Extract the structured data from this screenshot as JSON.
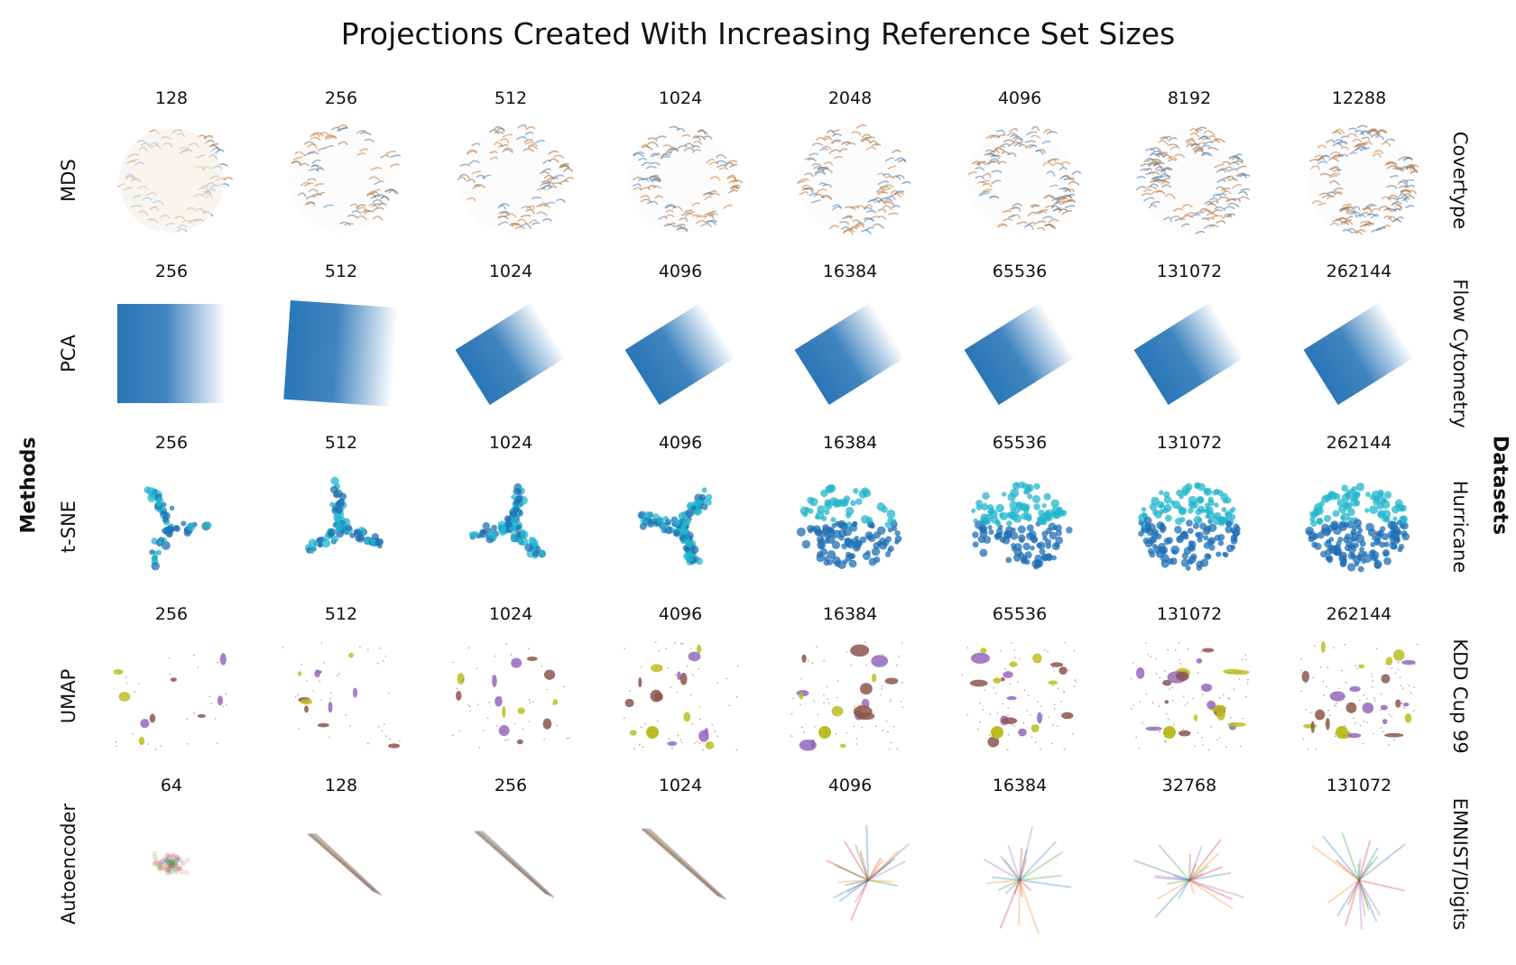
{
  "chart_data": {
    "type": "scatter",
    "title": "Projections Created With Increasing Reference Set Sizes",
    "row_axis_label": "Methods",
    "col_axis_label": "Datasets",
    "rows": [
      {
        "method": "MDS",
        "dataset": "Covertype",
        "sizes": [
          "128",
          "256",
          "512",
          "1024",
          "2048",
          "4096",
          "8192",
          "12288"
        ],
        "colors": [
          "#c66a1f",
          "#2b6fb3",
          "#8a5a2b"
        ]
      },
      {
        "method": "PCA",
        "dataset": "Flow Cytometry",
        "sizes": [
          "256",
          "512",
          "1024",
          "4096",
          "16384",
          "65536",
          "131072",
          "262144"
        ],
        "colors": [
          "#1f6fb4"
        ]
      },
      {
        "method": "t-SNE",
        "dataset": "Hurricane",
        "sizes": [
          "256",
          "512",
          "1024",
          "4096",
          "16384",
          "65536",
          "131072",
          "262144"
        ],
        "colors": [
          "#1f6fb4",
          "#22b6cc"
        ]
      },
      {
        "method": "UMAP",
        "dataset": "KDD Cup 99",
        "sizes": [
          "256",
          "512",
          "1024",
          "4096",
          "16384",
          "65536",
          "131072",
          "262144"
        ],
        "colors": [
          "#8c564b",
          "#9467bd",
          "#bcbd22"
        ]
      },
      {
        "method": "Autoencoder",
        "dataset": "EMNIST/Digits",
        "sizes": [
          "64",
          "128",
          "256",
          "1024",
          "4096",
          "16384",
          "32768",
          "131072"
        ],
        "colors": [
          "#d62728",
          "#1f77b4",
          "#2ca02c",
          "#ff7f0e",
          "#9467bd"
        ]
      }
    ]
  }
}
